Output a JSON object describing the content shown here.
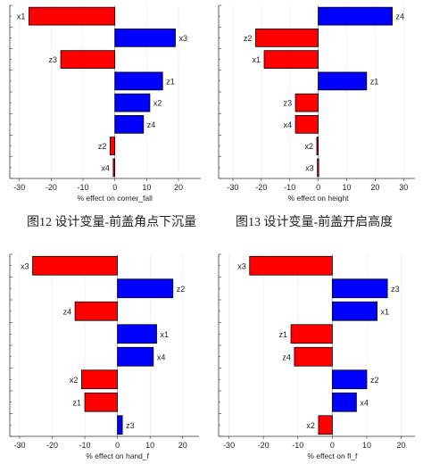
{
  "captions": {
    "fig12": "图12 设计变量-前盖角点下沉量",
    "fig13": "图13 设计变量-前盖开启高度"
  },
  "colors": {
    "positive": "#0000ff",
    "negative": "#ff0000",
    "axis": "#333333",
    "grid": "#e8e8e8",
    "zero_line": "#888888"
  },
  "chart_data": [
    {
      "type": "bar",
      "orientation": "horizontal",
      "xlabel": "% effect on corner_fall",
      "xlim": [
        -33,
        27
      ],
      "xticks": [
        -30,
        -20,
        -10,
        0,
        10,
        20
      ],
      "categories": [
        "x1",
        "x3",
        "z3",
        "z1",
        "x2",
        "z4",
        "z2",
        "x4"
      ],
      "values": [
        -27,
        19,
        -17,
        15,
        11,
        9,
        -1.5,
        -0.5
      ]
    },
    {
      "type": "bar",
      "orientation": "horizontal",
      "xlabel": "% effect on height",
      "xlim": [
        -35,
        34
      ],
      "xticks": [
        -30,
        -20,
        -10,
        0,
        10,
        20,
        30
      ],
      "categories": [
        "z4",
        "z2",
        "x1",
        "z1",
        "z3",
        "x4",
        "x2",
        "x3"
      ],
      "values": [
        26,
        -22,
        -19,
        17,
        -8,
        -8,
        -0.5,
        -0.3
      ]
    },
    {
      "type": "bar",
      "orientation": "horizontal",
      "xlabel": "% effect on hand_f",
      "xlim": [
        -33,
        25
      ],
      "xticks": [
        -30,
        -20,
        -10,
        0,
        10,
        20
      ],
      "categories": [
        "x3",
        "z2",
        "z4",
        "x1",
        "x4",
        "x2",
        "z1",
        "z3"
      ],
      "values": [
        -26,
        17,
        -13,
        12,
        11,
        -11,
        -10,
        1.5
      ]
    },
    {
      "type": "bar",
      "orientation": "horizontal",
      "xlabel": "% effect on fl_f",
      "xlim": [
        -33,
        24
      ],
      "xticks": [
        -30,
        -20,
        -10,
        0,
        10,
        20
      ],
      "categories": [
        "x3",
        "z3",
        "x1",
        "z1",
        "z4",
        "z2",
        "x4",
        "x2"
      ],
      "values": [
        -24,
        16,
        13,
        -12,
        -11,
        10,
        7,
        -4
      ]
    }
  ]
}
